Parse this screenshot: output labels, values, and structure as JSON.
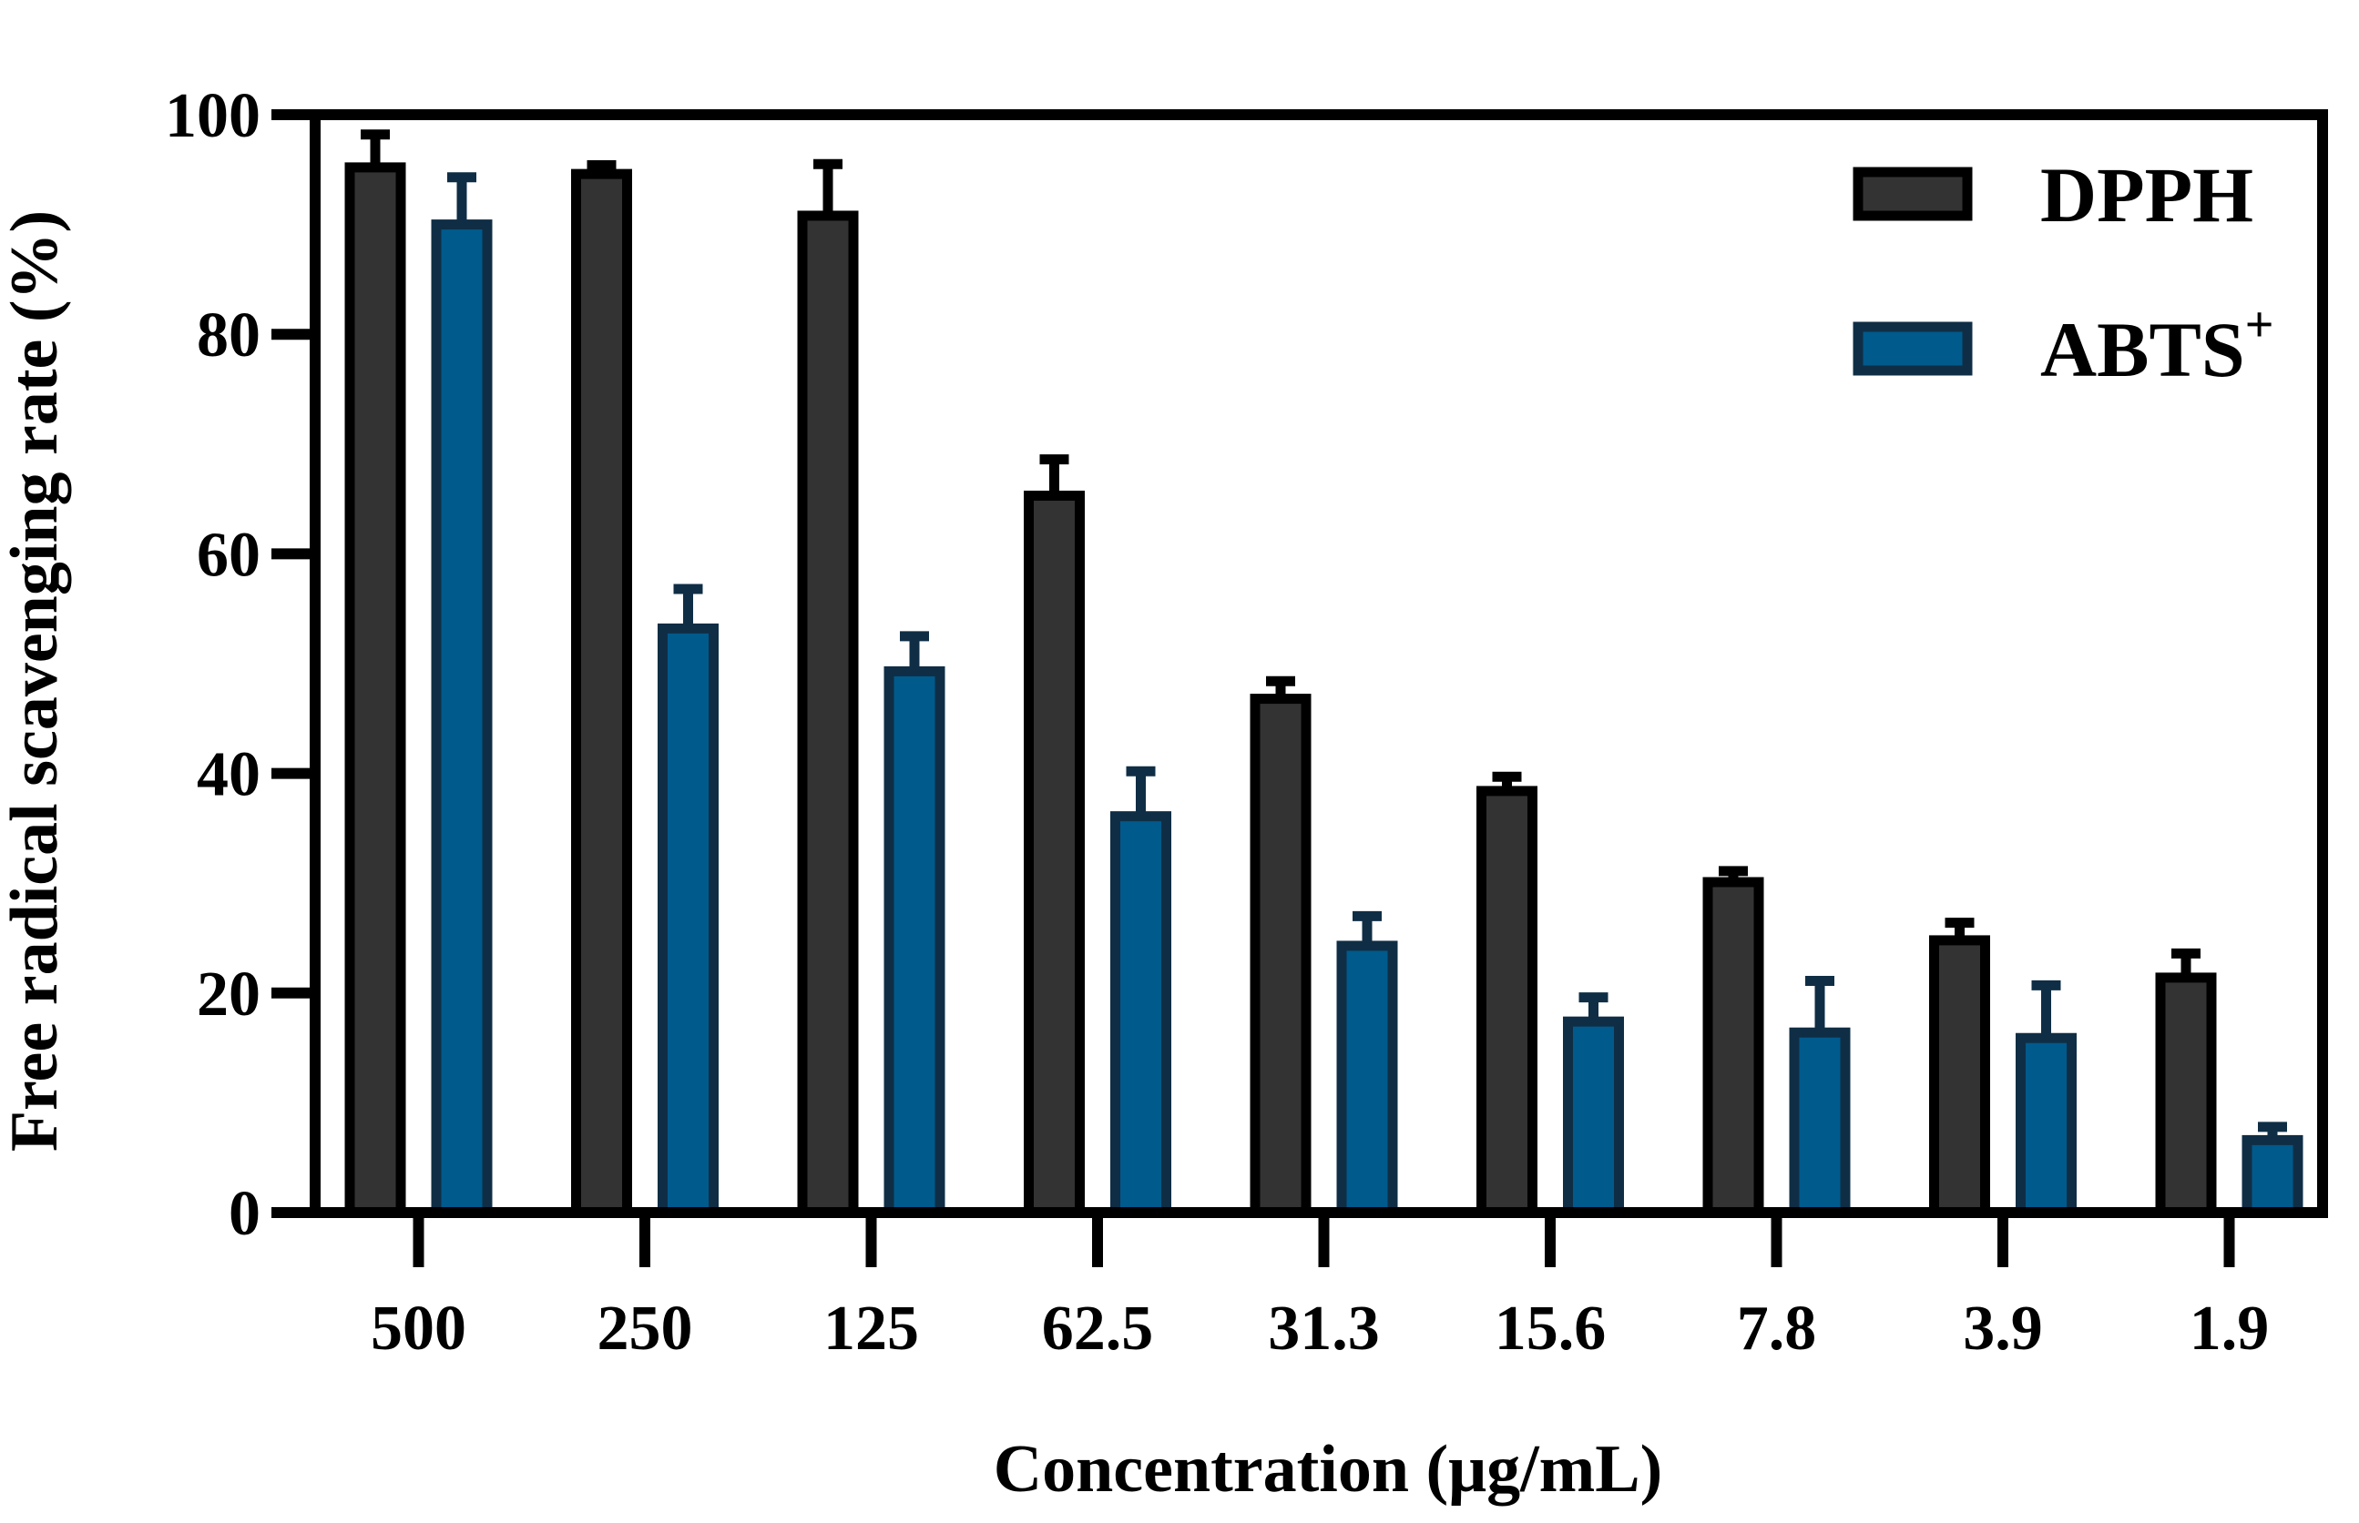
{
  "chart_data": {
    "type": "bar",
    "title": "",
    "xlabel": "Concentration (μg/mL)",
    "ylabel": "Free radical scavenging rate (%)",
    "ylim": [
      0,
      100
    ],
    "yticks": [
      0,
      20,
      40,
      60,
      80,
      100
    ],
    "grid": false,
    "legend_position": "top-right",
    "categories": [
      "500",
      "250",
      "125",
      "62.5",
      "31.3",
      "15.6",
      "7.8",
      "3.9",
      "1.9"
    ],
    "series": [
      {
        "name": "DPPH",
        "superscript": "",
        "color": "#333333",
        "outline": "#000000",
        "values": [
          95.2,
          94.6,
          90.8,
          65.3,
          46.8,
          38.4,
          30.1,
          24.8,
          21.4
        ],
        "errors": [
          3.0,
          0.8,
          4.7,
          3.3,
          1.6,
          1.3,
          1.0,
          1.6,
          2.2
        ]
      },
      {
        "name": "ABTS",
        "superscript": "+",
        "color": "#005A8C",
        "outline": "#0F2E45",
        "values": [
          90.0,
          53.2,
          49.3,
          36.1,
          24.3,
          17.4,
          16.4,
          15.9,
          6.6
        ],
        "errors": [
          4.3,
          3.6,
          3.2,
          4.1,
          2.7,
          2.2,
          4.7,
          4.8,
          1.2
        ]
      }
    ]
  }
}
